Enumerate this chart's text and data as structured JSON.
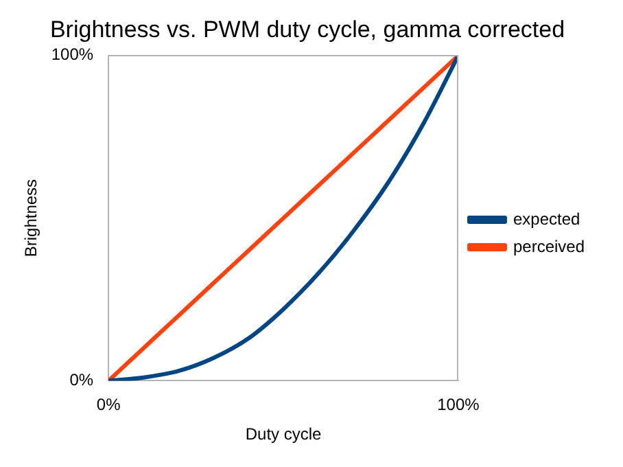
{
  "chart_data": {
    "type": "line",
    "title": "Brightness vs. PWM duty cycle, gamma corrected",
    "xlabel": "Duty cycle",
    "ylabel": "Brightness",
    "x": [
      0,
      10,
      20,
      30,
      40,
      50,
      60,
      70,
      80,
      90,
      100
    ],
    "series": [
      {
        "name": "expected",
        "color": "#004586",
        "values": [
          0,
          1,
          3,
          7,
          13,
          22,
          33,
          46,
          61,
          79,
          100
        ]
      },
      {
        "name": "perceived",
        "color": "#ff420e",
        "values": [
          0,
          10,
          20,
          30,
          40,
          50,
          60,
          70,
          80,
          90,
          100
        ]
      }
    ],
    "xlim": [
      0,
      100
    ],
    "ylim": [
      0,
      100
    ],
    "xticks": [
      {
        "value": 0,
        "label": "0%"
      },
      {
        "value": 100,
        "label": "100%"
      }
    ],
    "yticks": [
      {
        "value": 0,
        "label": "0%"
      },
      {
        "value": 100,
        "label": "100%"
      }
    ],
    "grid": false,
    "legend": "right",
    "marker": "none",
    "line_style": "solid"
  }
}
